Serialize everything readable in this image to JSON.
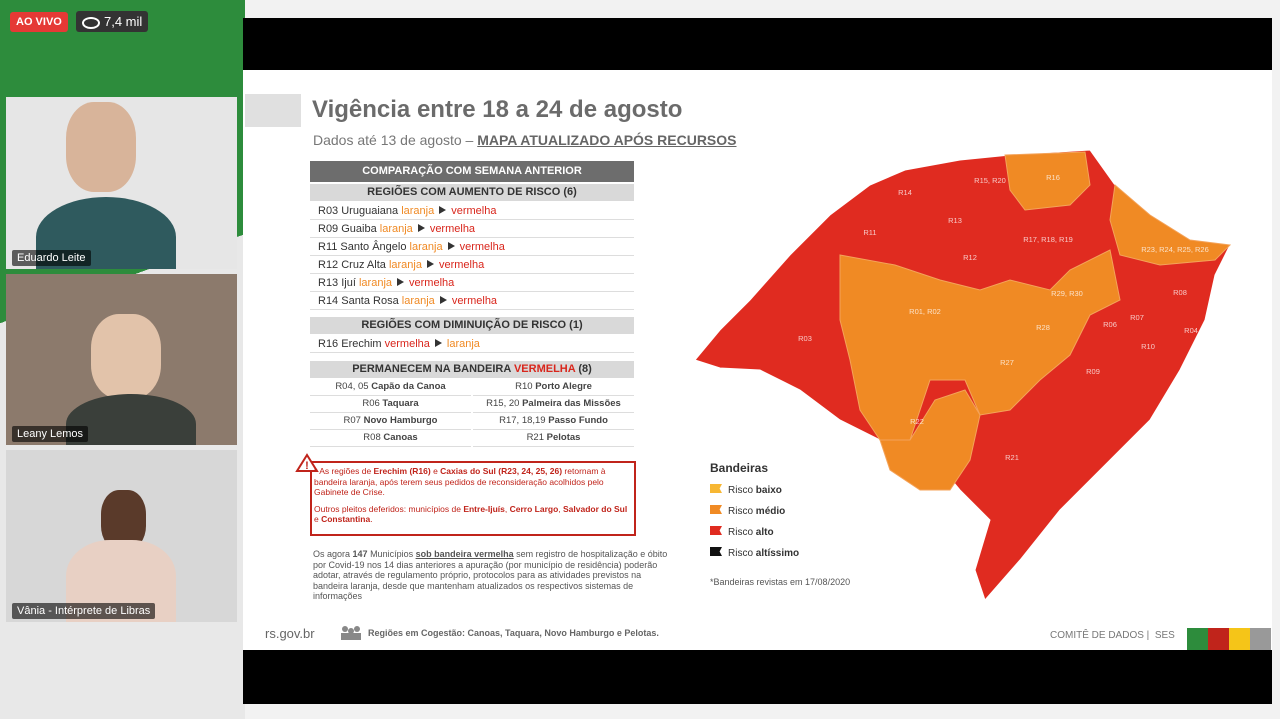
{
  "stream": {
    "live": "AO VIVO",
    "viewers": "7,4 mil"
  },
  "participants": [
    "Eduardo Leite",
    "Leany Lemos",
    "Vânia - Intérprete de Libras"
  ],
  "slide": {
    "title": "Vigência entre 18 a 24 de agosto",
    "subtitle": "Dados até 13 de agosto –",
    "subtitle_link": "MAPA ATUALIZADO APÓS RECURSOS",
    "table": {
      "header": "COMPARAÇÃO COM SEMANA ANTERIOR",
      "increase": {
        "title": "REGIÕES COM AUMENTO DE RISCO (6)",
        "rows": [
          {
            "region": "R03 Uruguaiana",
            "from": "laranja",
            "to": "vermelha"
          },
          {
            "region": "R09 Guaiba",
            "from": "laranja",
            "to": "vermelha"
          },
          {
            "region": "R11 Santo Ângelo",
            "from": "laranja",
            "to": "vermelha"
          },
          {
            "region": "R12 Cruz Alta",
            "from": "laranja",
            "to": "vermelha"
          },
          {
            "region": "R13 Ijuí",
            "from": "laranja",
            "to": "vermelha"
          },
          {
            "region": "R14 Santa Rosa",
            "from": "laranja",
            "to": "vermelha"
          }
        ]
      },
      "decrease": {
        "title": "REGIÕES COM DIMINUIÇÃO DE RISCO (1)",
        "rows": [
          {
            "region": "R16 Erechim",
            "from": "vermelha",
            "to": "laranja"
          }
        ]
      },
      "remain": {
        "title": [
          "PERMANECEM NA BANDEIRA",
          "VERMELHA",
          "(8)"
        ],
        "cells": [
          {
            "code": "R04, 05",
            "name": "Capão da Canoa"
          },
          {
            "code": "R10",
            "name": "Porto Alegre"
          },
          {
            "code": "R06",
            "name": "Taquara"
          },
          {
            "code": "R15, 20",
            "name": "Palmeira das Missões"
          },
          {
            "code": "R07",
            "name": "Novo Hamburgo"
          },
          {
            "code": "R17, 18,19",
            "name": "Passo Fundo"
          },
          {
            "code": "R08",
            "name": "Canoas"
          },
          {
            "code": "R21",
            "name": "Pelotas"
          }
        ]
      }
    },
    "notice": [
      [
        {
          "text": "* As regiões de ",
          "style": "n"
        },
        {
          "text": "Erechim (R16)",
          "style": "br"
        },
        {
          "text": " e ",
          "style": "n"
        },
        {
          "text": "Caxias do Sul (R23, 24, 25, 26)",
          "style": "br"
        },
        {
          "text": " retornam à bandeira laranja, após terem seus pedidos de reconsideração acolhidos pelo Gabinete de Crise.",
          "style": "n"
        }
      ],
      [
        {
          "text": "Outros pleitos deferidos: municípios de ",
          "style": "n"
        },
        {
          "text": "Entre-Ijuís",
          "style": "br"
        },
        {
          "text": ", ",
          "style": "n"
        },
        {
          "text": "Cerro Largo",
          "style": "br"
        },
        {
          "text": ", ",
          "style": "n"
        },
        {
          "text": "Salvador do Sul",
          "style": "br"
        },
        {
          "text": " e ",
          "style": "n"
        },
        {
          "text": "Constantina",
          "style": "br"
        },
        {
          "text": ".",
          "style": "n"
        }
      ]
    ],
    "paragraph": [
      {
        "text": "Os agora ",
        "style": "n"
      },
      {
        "text": "147",
        "style": "b"
      },
      {
        "text": " Municípios ",
        "style": "n"
      },
      {
        "text": "sob bandeira vermelha",
        "style": "u"
      },
      {
        "text": " sem registro de hospitalização e óbito por Covid-19 nos 14 dias anteriores a apuração (por município de residência) poderão adotar, através de regulamento próprio, protocolos para as atividades previstos na bandeira laranja, desde que mantenham atualizados os respectivos sistemas de informações",
        "style": "n"
      }
    ],
    "map_labels": [
      "R14",
      "R15, R20",
      "R16",
      "R13",
      "R11",
      "R12",
      "R17, R18, R19",
      "R23, R24, R25, R26",
      "R29, R30",
      "R08",
      "R01, R02",
      "R28",
      "R06",
      "R07",
      "R04, R05",
      "R10",
      "R03",
      "R27",
      "R09",
      "R22",
      "R21"
    ],
    "legend": {
      "title": "Bandeiras",
      "items": [
        {
          "prefix": "Risco",
          "label": "baixo",
          "color": "#f7b733"
        },
        {
          "prefix": "Risco",
          "label": "médio",
          "color": "#f08a24"
        },
        {
          "prefix": "Risco",
          "label": "alto",
          "color": "#e02b20"
        },
        {
          "prefix": "Risco",
          "label": "altíssimo",
          "color": "#111111"
        }
      ]
    },
    "legend_note": "*Bandeiras revistas em 17/08/2020",
    "footer": {
      "site": "rs.gov.br",
      "cogestao": "Regiões em Cogestão: Canoas, Taquara, Novo Hamburgo e Pelotas.",
      "committee": "COMITÊ DE DADOS |  SES"
    }
  }
}
